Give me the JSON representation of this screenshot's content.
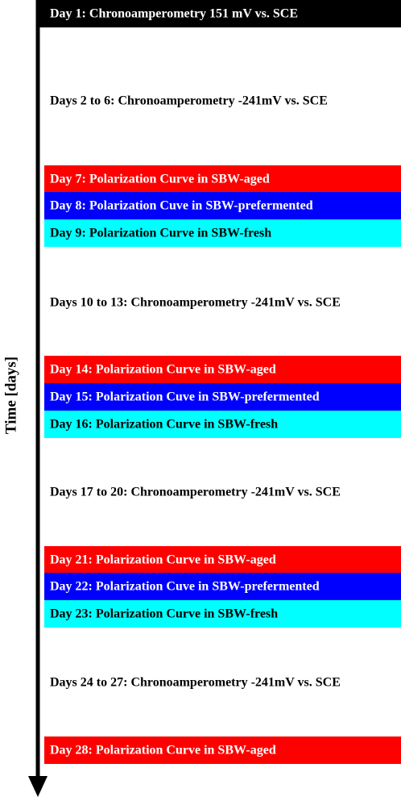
{
  "axis_label": "Time [days]",
  "steps": [
    {
      "label": "Day 1: Chronoamperometry 151 mV vs. SCE",
      "color": "#000000",
      "text_color": "#ffffff"
    },
    {
      "label": "Days 2 to 6: Chronoamperometry -241mV vs. SCE",
      "color": null,
      "text_color": "#000000"
    },
    {
      "label": "Day 7: Polarization Curve in SBW-aged",
      "color": "#ff0000",
      "text_color": "#ffffff"
    },
    {
      "label": "Day 8: Polarization Cuve in SBW-prefermented",
      "color": "#0000ff",
      "text_color": "#ffffff"
    },
    {
      "label": "Day 9: Polarization Curve in SBW-fresh",
      "color": "#00ffff",
      "text_color": "#000000"
    },
    {
      "label": "Days 10 to 13: Chronoamperometry -241mV vs. SCE",
      "color": null,
      "text_color": "#000000"
    },
    {
      "label": "Day 14: Polarization Curve in SBW-aged",
      "color": "#ff0000",
      "text_color": "#ffffff"
    },
    {
      "label": "Day 15: Polarization Cuve in SBW-prefermented",
      "color": "#0000ff",
      "text_color": "#ffffff"
    },
    {
      "label": "Day 16: Polarization Curve in SBW-fresh",
      "color": "#00ffff",
      "text_color": "#000000"
    },
    {
      "label": "Days 17 to 20: Chronoamperometry -241mV vs. SCE",
      "color": null,
      "text_color": "#000000"
    },
    {
      "label": "Day 21: Polarization Curve in SBW-aged",
      "color": "#ff0000",
      "text_color": "#ffffff"
    },
    {
      "label": "Day 22: Polarization Cuve in SBW-prefermented",
      "color": "#0000ff",
      "text_color": "#ffffff"
    },
    {
      "label": "Day 23: Polarization Curve in SBW-fresh",
      "color": "#00ffff",
      "text_color": "#000000"
    },
    {
      "label": "Days 24 to 27: Chronoamperometry -241mV vs. SCE",
      "color": null,
      "text_color": "#000000"
    },
    {
      "label": "Day 28: Polarization Curve in SBW-aged",
      "color": "#ff0000",
      "text_color": "#ffffff"
    }
  ]
}
